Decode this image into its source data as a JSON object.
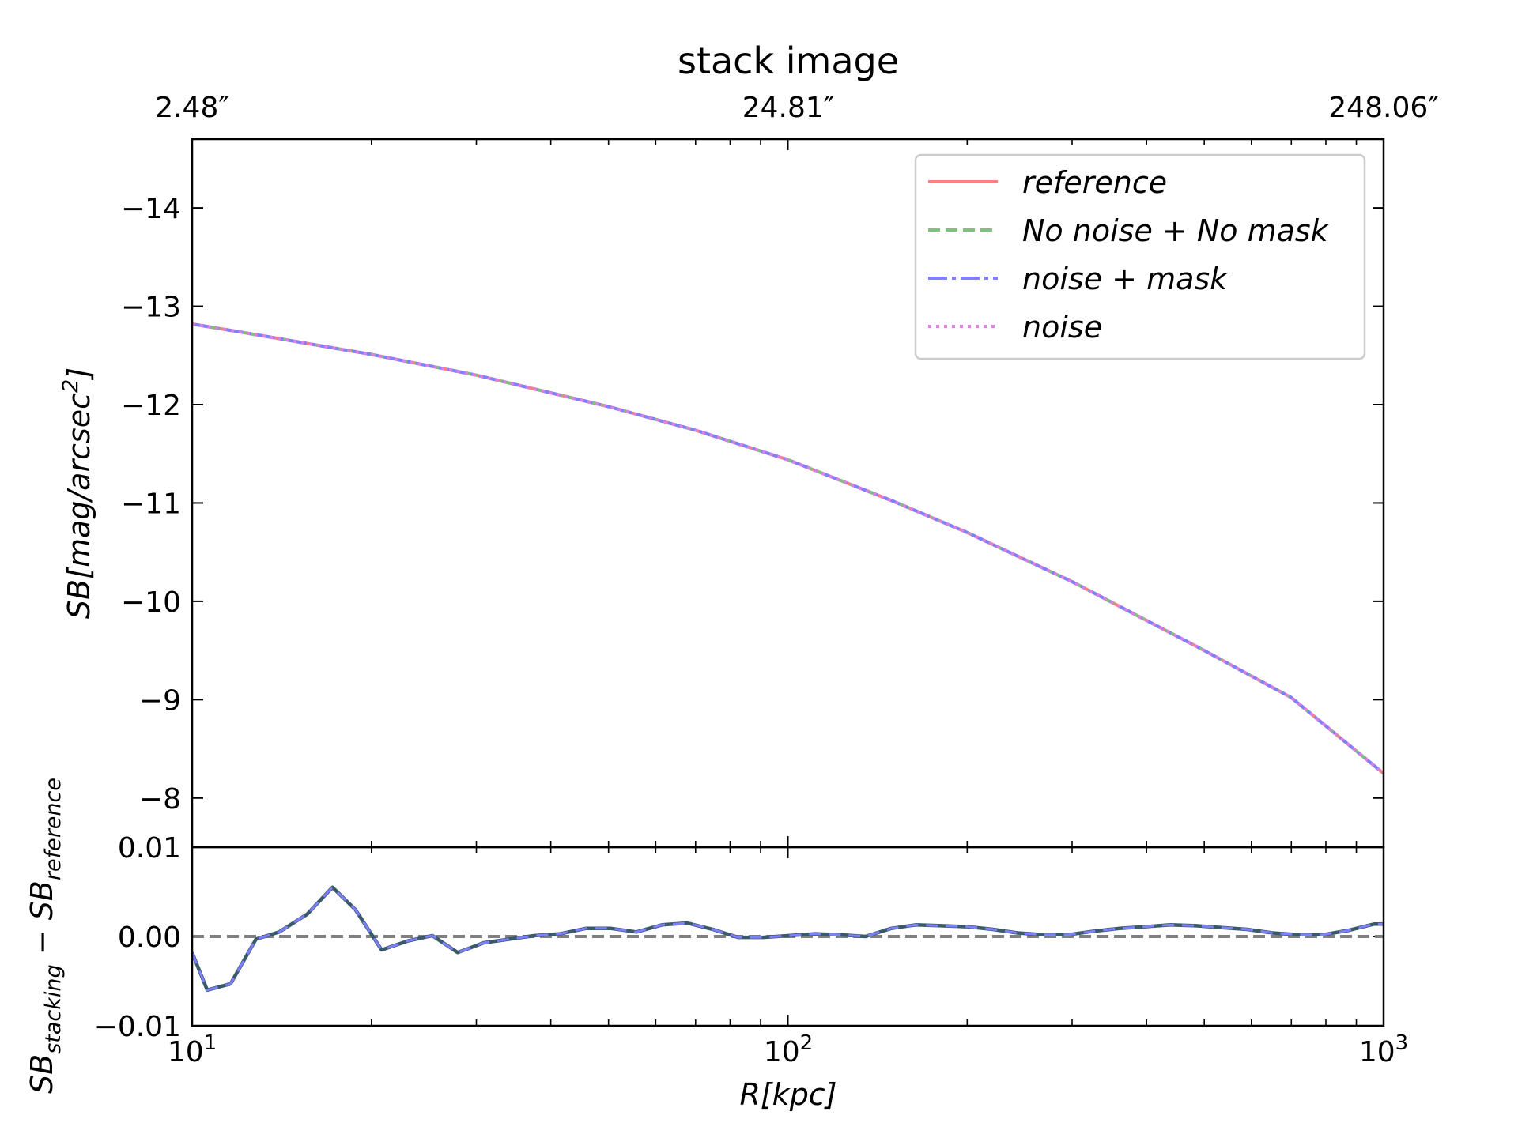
{
  "title": "stack image",
  "colors": {
    "reference": "#ff7f7f",
    "no_noise_no_mask": "#7fbf7f",
    "noise_mask": "#7f7fff",
    "noise": "#df7fdf",
    "residual_line": "#3a5a6a",
    "residual_dash": "#7f7fff",
    "zero_line": "#808080"
  },
  "top_axis": {
    "tick_labels": [
      "2.48″",
      "24.81″",
      "248.06″"
    ]
  },
  "chart_data": [
    {
      "type": "line",
      "title": "stack image",
      "xlabel": "",
      "ylabel": "SB[mag/arcsec²]",
      "ylabel_parts": {
        "main": "SB[mag/arcsec",
        "sup": "2",
        "end": "]"
      },
      "xscale": "log",
      "xlim": [
        10,
        1000
      ],
      "ylim": [
        -14.7,
        -7.5
      ],
      "y_inverted": true,
      "yticks": [
        -14,
        -13,
        -12,
        -11,
        -10,
        -9,
        -8
      ],
      "ytick_labels": [
        "−14",
        "−13",
        "−12",
        "−11",
        "−10",
        "−9",
        "−8"
      ],
      "legend_position": "upper right",
      "x": [
        10,
        12,
        15,
        20,
        30,
        50,
        70,
        100,
        150,
        200,
        300,
        500,
        700,
        1000
      ],
      "series": [
        {
          "name": "reference",
          "style": "solid",
          "values": [
            -12.82,
            -12.74,
            -12.64,
            -12.51,
            -12.3,
            -11.98,
            -11.74,
            -11.44,
            -11.02,
            -10.7,
            -10.2,
            -9.5,
            -9.02,
            -8.25
          ]
        },
        {
          "name": "No noise + No mask",
          "style": "dashed",
          "values": [
            -12.82,
            -12.74,
            -12.64,
            -12.51,
            -12.3,
            -11.98,
            -11.74,
            -11.44,
            -11.02,
            -10.7,
            -10.2,
            -9.5,
            -9.02,
            -8.25
          ]
        },
        {
          "name": "noise + mask",
          "style": "dashdot",
          "values": [
            -12.82,
            -12.74,
            -12.64,
            -12.51,
            -12.3,
            -11.98,
            -11.74,
            -11.44,
            -11.02,
            -10.7,
            -10.2,
            -9.5,
            -9.02,
            -8.25
          ]
        },
        {
          "name": "noise",
          "style": "dotted",
          "values": [
            -12.82,
            -12.74,
            -12.64,
            -12.51,
            -12.3,
            -11.98,
            -11.74,
            -11.44,
            -11.02,
            -10.7,
            -10.2,
            -9.5,
            -9.02,
            -8.25
          ]
        }
      ]
    },
    {
      "type": "line",
      "xlabel": "R[kpc]",
      "ylabel_parts": {
        "a": "SB",
        "a_sub": "stacking",
        "mid": " − ",
        "b": "SB",
        "b_sub": "reference"
      },
      "xscale": "log",
      "xlim": [
        10,
        1000
      ],
      "ylim": [
        -0.01,
        0.01
      ],
      "yticks": [
        0.01,
        0.0,
        -0.01
      ],
      "ytick_labels": [
        "0.01",
        "0.00",
        "−0.01"
      ],
      "xtick_labels": [
        {
          "base": "10",
          "exp": "1"
        },
        {
          "base": "10",
          "exp": "2"
        },
        {
          "base": "10",
          "exp": "3"
        }
      ],
      "reference_line": 0.0,
      "x": [
        10,
        10.6,
        11.6,
        12.8,
        14.0,
        15.6,
        17.2,
        18.8,
        20.8,
        23.0,
        25.3,
        27.9,
        30.9,
        34.1,
        37.6,
        41.5,
        45.8,
        50.5,
        55.7,
        61.5,
        67.8,
        74.8,
        82.5,
        91.0,
        100.5,
        111,
        122,
        135,
        149,
        164,
        181,
        200,
        221,
        243,
        268,
        296,
        327,
        360,
        398,
        439,
        484,
        535,
        590,
        651,
        718,
        793,
        875,
        965,
        1000
      ],
      "values": [
        -0.0018,
        -0.006,
        -0.0053,
        -0.0003,
        0.0005,
        0.0025,
        0.0055,
        0.003,
        -0.0015,
        -0.0005,
        0.0001,
        -0.0018,
        -0.0007,
        -0.0003,
        0.0001,
        0.0003,
        0.0009,
        0.0009,
        0.0005,
        0.0013,
        0.0015,
        0.0008,
        -0.0001,
        -0.0001,
        0.0001,
        0.0003,
        0.0002,
        0.0,
        0.0009,
        0.0013,
        0.0012,
        0.0011,
        0.0008,
        0.0004,
        0.0002,
        0.0002,
        0.0006,
        0.0009,
        0.0011,
        0.0013,
        0.0012,
        0.001,
        0.0008,
        0.0004,
        0.0002,
        0.0002,
        0.0007,
        0.0014,
        0.0014
      ]
    }
  ]
}
